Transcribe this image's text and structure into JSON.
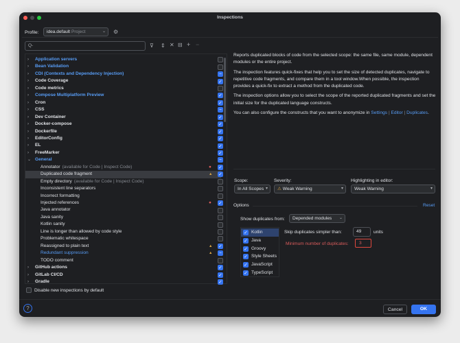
{
  "window": {
    "title": "Inspections"
  },
  "profile": {
    "label": "Profile:",
    "value": "idea.default",
    "scope": "Project"
  },
  "search": {
    "placeholder": "Q-"
  },
  "tree": [
    {
      "label": "Application servers",
      "group": true,
      "blue": true,
      "check": "off"
    },
    {
      "label": "Bean Validation",
      "group": true,
      "blue": true,
      "check": "off"
    },
    {
      "label": "CDI (Contexts and Dependency Injection)",
      "group": true,
      "blue": true,
      "check": "mixed"
    },
    {
      "label": "Code Coverage",
      "group": true,
      "check": "on"
    },
    {
      "label": "Code metrics",
      "group": true,
      "check": "off"
    },
    {
      "label": "Compose Multiplatform Preview",
      "group": true,
      "blue": true,
      "check": "on"
    },
    {
      "label": "Cron",
      "group": true,
      "check": "on"
    },
    {
      "label": "CSS",
      "group": true,
      "check": "mixed"
    },
    {
      "label": "Dev Container",
      "group": true,
      "check": "on"
    },
    {
      "label": "Docker-compose",
      "group": true,
      "check": "on"
    },
    {
      "label": "Dockerfile",
      "group": true,
      "check": "on"
    },
    {
      "label": "EditorConfig",
      "group": true,
      "check": "on"
    },
    {
      "label": "EL",
      "group": true,
      "check": "on"
    },
    {
      "label": "FreeMarker",
      "group": true,
      "check": "on"
    },
    {
      "label": "General",
      "group": true,
      "blue": true,
      "expanded": true,
      "check": "mixed"
    },
    {
      "label": "Annotator",
      "note": "(available for Code | Inspect Code)",
      "check": "on",
      "severity": "error"
    },
    {
      "label": "Duplicated code fragment",
      "check": "on",
      "severity": "warning",
      "selected": true
    },
    {
      "label": "Empty directory",
      "note": "(available for Code | Inspect Code)",
      "check": "off"
    },
    {
      "label": "Inconsistent line separators",
      "check": "off"
    },
    {
      "label": "Incorrect formatting",
      "check": "off"
    },
    {
      "label": "Injected references",
      "check": "on",
      "severity": "error"
    },
    {
      "label": "Java annotator",
      "check": "off"
    },
    {
      "label": "Java sanity",
      "check": "off"
    },
    {
      "label": "Kotlin sanity",
      "check": "off"
    },
    {
      "label": "Line is longer than allowed by code style",
      "check": "off"
    },
    {
      "label": "Problematic whitespace",
      "check": "off"
    },
    {
      "label": "Reassigned to plain text",
      "check": "on",
      "severity": "warning"
    },
    {
      "label": "Redundant suppression",
      "blue": true,
      "check": "mixed",
      "severity": "warning"
    },
    {
      "label": "TODO comment",
      "check": "off"
    },
    {
      "label": "GitHub actions",
      "group": true,
      "check": "on"
    },
    {
      "label": "GitLab CI/CD",
      "group": true,
      "check": "on"
    },
    {
      "label": "Gradle",
      "group": true,
      "check": "on"
    }
  ],
  "disable_new": {
    "label": "Disable new inspections by default",
    "checked": false
  },
  "description": {
    "p1": "Reports duplicated blocks of code from the selected scope: the same file, same module, dependent modules or the entire project.",
    "p2": "The inspection features quick-fixes that help you to set the size of detected duplicates, navigate to repetitive code fragments, and compare them in a tool window.When possible, the inspection provides a quick-fix to extract a method from the duplicated code.",
    "p3": "The inspection options allow you to select the scope of the reported duplicated fragments and set the initial size for the duplicated language constructs.",
    "p4": "You can also configure the constructs that you want to anonymize in",
    "link1": "Settings",
    "sep": "|",
    "link2": "Editor",
    "link3": "Duplicates",
    "end": "."
  },
  "scope": {
    "label": "Scope:",
    "value": "In All Scopes"
  },
  "severity": {
    "label": "Severity:",
    "value": "Weak Warning"
  },
  "highlighting": {
    "label": "Highlighting in editor:",
    "value": "Weak Warning"
  },
  "options": {
    "label": "Options",
    "reset": "Reset",
    "show_from_label": "Show duplicates from:",
    "show_from_value": "Depended modules",
    "languages": [
      {
        "label": "Kotlin",
        "checked": true
      },
      {
        "label": "Java",
        "checked": true
      },
      {
        "label": "Groovy",
        "checked": true
      },
      {
        "label": "Style Sheets",
        "checked": true
      },
      {
        "label": "JavaScript",
        "checked": true
      },
      {
        "label": "TypeScript",
        "checked": true
      }
    ],
    "skip_label": "Skip duplicates simpler than:",
    "skip_value": "49",
    "units": "units",
    "min_label": "Minimum number of duplicates:",
    "min_value": "3"
  },
  "buttons": {
    "cancel": "Cancel",
    "ok": "OK",
    "help": "?"
  },
  "colors": {
    "accent": "#3574f0",
    "link": "#589df6",
    "error": "#db5c5c",
    "warning": "#d9a343"
  }
}
